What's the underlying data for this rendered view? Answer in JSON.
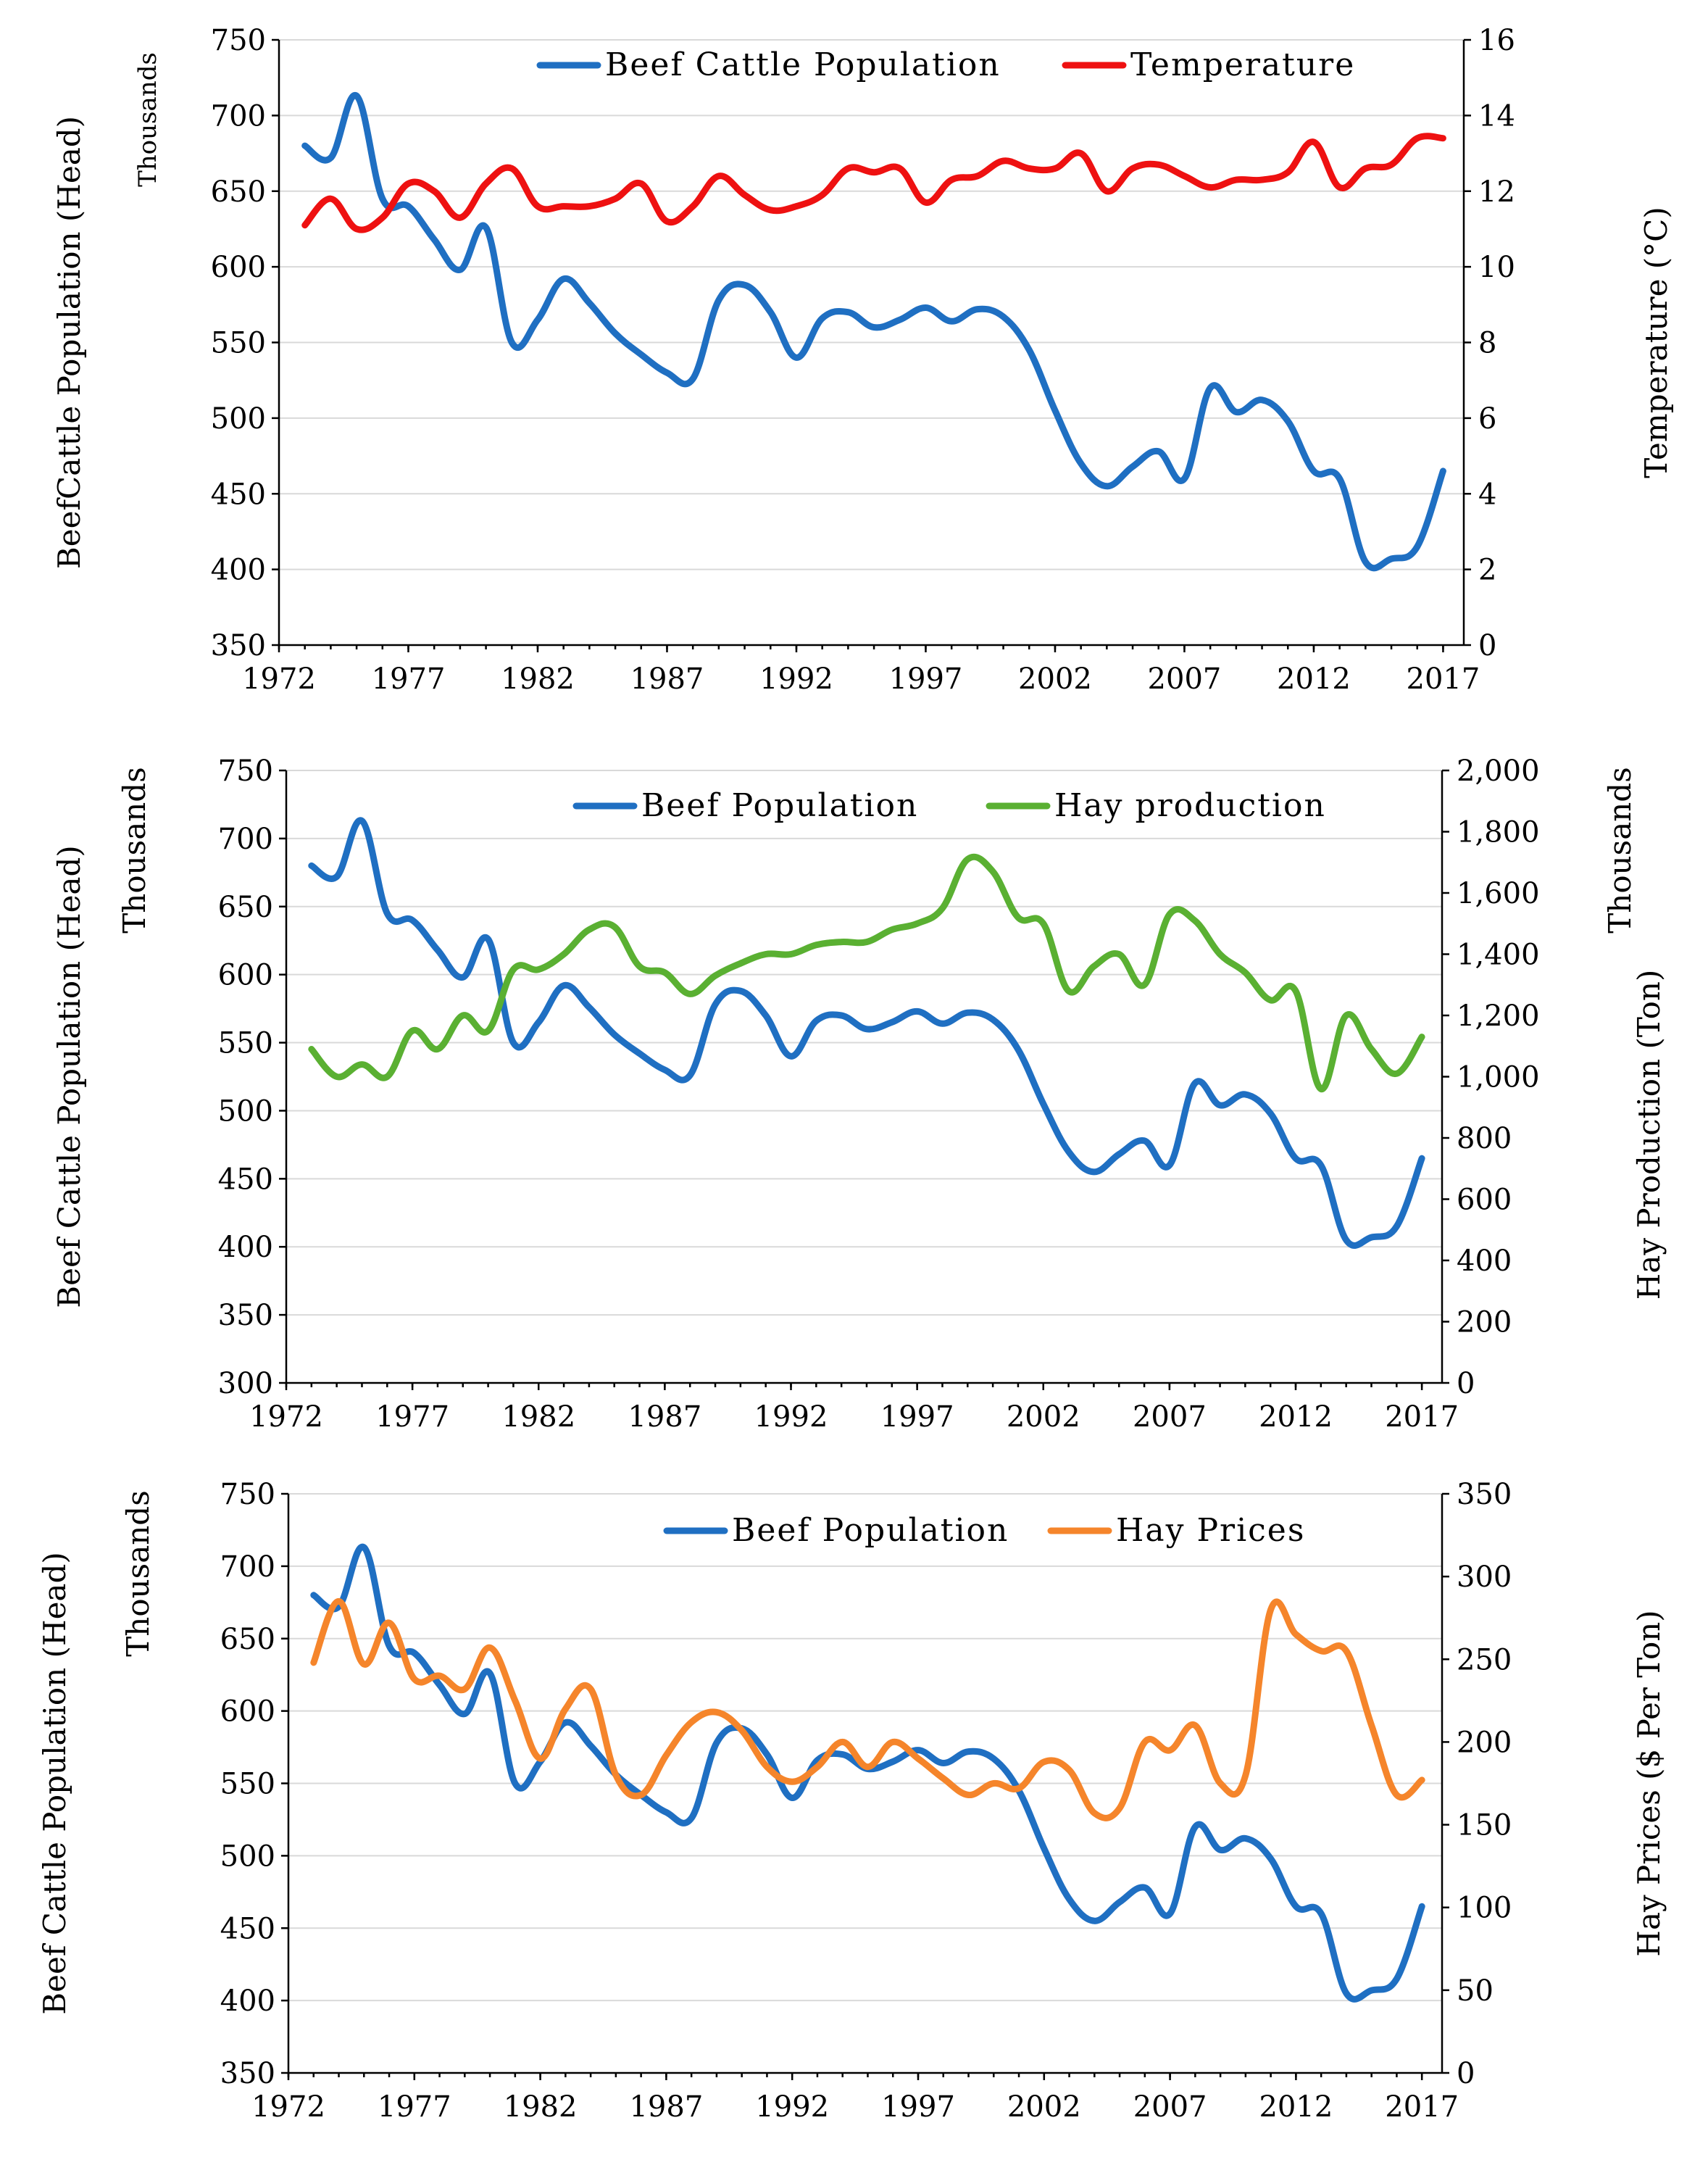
{
  "chart_data": [
    {
      "type": "line",
      "x_ticks": [
        "1972",
        "1977",
        "1982",
        "1987",
        "1992",
        "1997",
        "2002",
        "2007",
        "2012",
        "2017"
      ],
      "xlim": [
        1972,
        2017.8
      ],
      "ylim_left": [
        350,
        750
      ],
      "y_ticks_left": [
        "350",
        "400",
        "450",
        "500",
        "550",
        "600",
        "650",
        "700",
        "750"
      ],
      "ylim_right": [
        0,
        16
      ],
      "y_ticks_right": [
        "0",
        "2",
        "4",
        "6",
        "8",
        "10",
        "12",
        "14",
        "16"
      ],
      "ylabel_left": "BeefCattle  Population  (Head)",
      "ylabel_left_units": "Thousands",
      "ylabel_right": "Temperature  (°C)",
      "ylabel_right_units": "",
      "series": [
        {
          "name": "Beef Cattle Population",
          "axis": "left",
          "color": "#1f6fc2",
          "x": [
            1973,
            1974,
            1975,
            1976,
            1977,
            1978,
            1979,
            1980,
            1981,
            1982,
            1983,
            1984,
            1985,
            1986,
            1987,
            1988,
            1989,
            1990,
            1991,
            1992,
            1993,
            1994,
            1995,
            1996,
            1997,
            1998,
            1999,
            2000,
            2001,
            2002,
            2003,
            2004,
            2005,
            2006,
            2007,
            2008,
            2009,
            2010,
            2011,
            2012,
            2013,
            2014,
            2015,
            2016,
            2017
          ],
          "values": [
            680,
            672,
            713,
            645,
            640,
            618,
            598,
            626,
            550,
            565,
            592,
            576,
            556,
            542,
            530,
            526,
            578,
            588,
            570,
            540,
            566,
            570,
            560,
            565,
            573,
            564,
            572,
            567,
            545,
            505,
            470,
            455,
            468,
            478,
            460,
            520,
            504,
            512,
            498,
            465,
            460,
            405,
            407,
            415,
            465
          ]
        },
        {
          "name": "Temperature",
          "axis": "right",
          "color": "#ee1111",
          "x": [
            1973,
            1974,
            1975,
            1976,
            1977,
            1978,
            1979,
            1980,
            1981,
            1982,
            1983,
            1984,
            1985,
            1986,
            1987,
            1988,
            1989,
            1990,
            1991,
            1992,
            1993,
            1994,
            1995,
            1996,
            1997,
            1998,
            1999,
            2000,
            2001,
            2002,
            2003,
            2004,
            2005,
            2006,
            2007,
            2008,
            2009,
            2010,
            2011,
            2012,
            2013,
            2014,
            2015,
            2016,
            2017
          ],
          "values": [
            11.1,
            11.8,
            11.0,
            11.3,
            12.2,
            12.0,
            11.3,
            12.2,
            12.6,
            11.6,
            11.6,
            11.6,
            11.8,
            12.2,
            11.2,
            11.6,
            12.4,
            11.9,
            11.5,
            11.6,
            11.9,
            12.6,
            12.5,
            12.6,
            11.7,
            12.3,
            12.4,
            12.8,
            12.6,
            12.6,
            13.0,
            12.0,
            12.6,
            12.7,
            12.4,
            12.1,
            12.3,
            12.3,
            12.5,
            13.3,
            12.1,
            12.6,
            12.7,
            13.4,
            13.4
          ]
        }
      ],
      "legend": "top"
    },
    {
      "type": "line",
      "x_ticks": [
        "1972",
        "1977",
        "1982",
        "1987",
        "1992",
        "1997",
        "2002",
        "2007",
        "2012",
        "2017"
      ],
      "xlim": [
        1972,
        2017.8
      ],
      "ylim_left": [
        300,
        750
      ],
      "y_ticks_left": [
        "300",
        "350",
        "400",
        "450",
        "500",
        "550",
        "600",
        "650",
        "700",
        "750"
      ],
      "ylim_right": [
        0,
        2000
      ],
      "y_ticks_right": [
        "0",
        "200",
        "400",
        "600",
        "800",
        "1,000",
        "1,200",
        "1,400",
        "1,600",
        "1,800",
        "2,000"
      ],
      "ylabel_left": "Beef Cattle  Population  (Head)",
      "ylabel_left_units": "Thousands",
      "ylabel_right": "Hay Production  (Ton)",
      "ylabel_right_units": "Thousands",
      "series": [
        {
          "name": "Beef Population",
          "axis": "left",
          "color": "#1f6fc2",
          "x": [
            1973,
            1974,
            1975,
            1976,
            1977,
            1978,
            1979,
            1980,
            1981,
            1982,
            1983,
            1984,
            1985,
            1986,
            1987,
            1988,
            1989,
            1990,
            1991,
            1992,
            1993,
            1994,
            1995,
            1996,
            1997,
            1998,
            1999,
            2000,
            2001,
            2002,
            2003,
            2004,
            2005,
            2006,
            2007,
            2008,
            2009,
            2010,
            2011,
            2012,
            2013,
            2014,
            2015,
            2016,
            2017
          ],
          "values": [
            680,
            672,
            713,
            645,
            640,
            618,
            598,
            626,
            550,
            565,
            592,
            576,
            556,
            542,
            530,
            526,
            578,
            588,
            570,
            540,
            566,
            570,
            560,
            565,
            573,
            564,
            572,
            567,
            545,
            505,
            470,
            455,
            468,
            478,
            460,
            520,
            504,
            512,
            498,
            465,
            460,
            405,
            407,
            415,
            465
          ]
        },
        {
          "name": "Hay production",
          "axis": "right",
          "color": "#5ab032",
          "x": [
            1973,
            1974,
            1975,
            1976,
            1977,
            1978,
            1979,
            1980,
            1981,
            1982,
            1983,
            1984,
            1985,
            1986,
            1987,
            1988,
            1989,
            1990,
            1991,
            1992,
            1993,
            1994,
            1995,
            1996,
            1997,
            1998,
            1999,
            2000,
            2001,
            2002,
            2003,
            2004,
            2005,
            2006,
            2007,
            2008,
            2009,
            2010,
            2011,
            2012,
            2013,
            2014,
            2015,
            2016,
            2017
          ],
          "values": [
            1090,
            1000,
            1040,
            1000,
            1150,
            1090,
            1200,
            1150,
            1350,
            1350,
            1400,
            1480,
            1490,
            1360,
            1340,
            1270,
            1330,
            1370,
            1400,
            1400,
            1430,
            1440,
            1440,
            1480,
            1500,
            1550,
            1710,
            1670,
            1520,
            1500,
            1280,
            1360,
            1400,
            1300,
            1530,
            1510,
            1400,
            1340,
            1250,
            1280,
            960,
            1200,
            1090,
            1010,
            1130
          ]
        }
      ],
      "legend": "top"
    },
    {
      "type": "line",
      "x_ticks": [
        "1972",
        "1977",
        "1982",
        "1987",
        "1992",
        "1997",
        "2002",
        "2007",
        "2012",
        "2017"
      ],
      "xlim": [
        1972,
        2017.8
      ],
      "ylim_left": [
        350,
        750
      ],
      "y_ticks_left": [
        "350",
        "400",
        "450",
        "500",
        "550",
        "600",
        "650",
        "700",
        "750"
      ],
      "ylim_right": [
        0,
        350
      ],
      "y_ticks_right": [
        "0",
        "50",
        "100",
        "150",
        "200",
        "250",
        "300",
        "350"
      ],
      "ylabel_left": "Beef Cattle Population (Head)",
      "ylabel_left_units": "Thousands",
      "ylabel_right": "Hay Prices ($  Per Ton)",
      "ylabel_right_units": "",
      "series": [
        {
          "name": "Beef Population",
          "axis": "left",
          "color": "#1f6fc2",
          "x": [
            1973,
            1974,
            1975,
            1976,
            1977,
            1978,
            1979,
            1980,
            1981,
            1982,
            1983,
            1984,
            1985,
            1986,
            1987,
            1988,
            1989,
            1990,
            1991,
            1992,
            1993,
            1994,
            1995,
            1996,
            1997,
            1998,
            1999,
            2000,
            2001,
            2002,
            2003,
            2004,
            2005,
            2006,
            2007,
            2008,
            2009,
            2010,
            2011,
            2012,
            2013,
            2014,
            2015,
            2016,
            2017
          ],
          "values": [
            680,
            672,
            713,
            645,
            640,
            618,
            598,
            626,
            550,
            565,
            592,
            576,
            556,
            542,
            530,
            526,
            578,
            588,
            570,
            540,
            566,
            570,
            560,
            565,
            573,
            564,
            572,
            567,
            545,
            505,
            470,
            455,
            468,
            478,
            460,
            520,
            504,
            512,
            498,
            465,
            460,
            405,
            407,
            415,
            465
          ]
        },
        {
          "name": "Hay Prices",
          "axis": "right",
          "color": "#f5852b",
          "x": [
            1973,
            1974,
            1975,
            1976,
            1977,
            1978,
            1979,
            1980,
            1981,
            1982,
            1983,
            1984,
            1985,
            1986,
            1987,
            1988,
            1989,
            1990,
            1991,
            1992,
            1993,
            1994,
            1995,
            1996,
            1997,
            1998,
            1999,
            2000,
            2001,
            2002,
            2003,
            2004,
            2005,
            2006,
            2007,
            2008,
            2009,
            2010,
            2011,
            2012,
            2013,
            2014,
            2015,
            2016,
            2017
          ],
          "values": [
            248,
            285,
            247,
            272,
            238,
            240,
            232,
            257,
            225,
            190,
            220,
            232,
            180,
            168,
            192,
            212,
            218,
            207,
            185,
            176,
            185,
            200,
            185,
            200,
            190,
            178,
            168,
            175,
            172,
            188,
            183,
            157,
            160,
            200,
            195,
            210,
            175,
            180,
            280,
            265,
            255,
            255,
            210,
            168,
            177
          ]
        }
      ],
      "legend": "top"
    }
  ]
}
